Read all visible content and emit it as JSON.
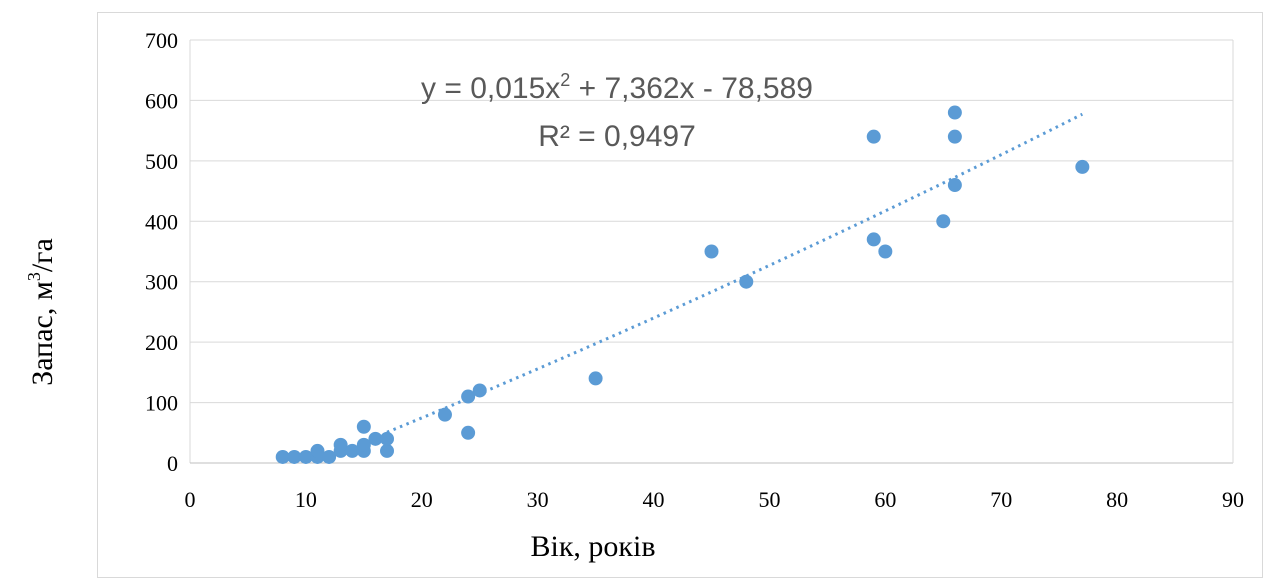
{
  "chart_data": {
    "type": "scatter",
    "xlabel": "Вік, років",
    "ylabel_main": "Запас, м",
    "ylabel_sup": "3",
    "ylabel_tail": "/га",
    "xlim": [
      0,
      90
    ],
    "ylim": [
      0,
      700
    ],
    "x_ticks": [
      "0",
      "10",
      "20",
      "30",
      "40",
      "50",
      "60",
      "70",
      "80",
      "90"
    ],
    "y_ticks": [
      "0",
      "100",
      "200",
      "300",
      "400",
      "500",
      "600",
      "700"
    ],
    "grid": "horizontal",
    "legend": "none",
    "marker_color": "#5b9bd5",
    "trendline": {
      "type": "polynomial",
      "a": 0.015,
      "b": 7.362,
      "c": -78.589,
      "x_range": [
        17,
        77
      ],
      "color": "#5b9bd5",
      "equation_pre": "y = 0,015x",
      "equation_sup": "2",
      "equation_post": " + 7,362x - 78,589",
      "r2_label": "R² = 0,9497"
    },
    "points": [
      [
        8,
        10
      ],
      [
        9,
        10
      ],
      [
        10,
        10
      ],
      [
        11,
        10
      ],
      [
        11,
        20
      ],
      [
        12,
        10
      ],
      [
        13,
        20
      ],
      [
        13,
        30
      ],
      [
        14,
        20
      ],
      [
        15,
        20
      ],
      [
        15,
        30
      ],
      [
        15,
        60
      ],
      [
        16,
        40
      ],
      [
        17,
        20
      ],
      [
        17,
        40
      ],
      [
        22,
        80
      ],
      [
        24,
        50
      ],
      [
        24,
        110
      ],
      [
        25,
        120
      ],
      [
        35,
        140
      ],
      [
        45,
        350
      ],
      [
        48,
        300
      ],
      [
        59,
        370
      ],
      [
        59,
        540
      ],
      [
        60,
        350
      ],
      [
        65,
        400
      ],
      [
        66,
        460
      ],
      [
        66,
        540
      ],
      [
        66,
        580
      ],
      [
        77,
        490
      ]
    ]
  }
}
